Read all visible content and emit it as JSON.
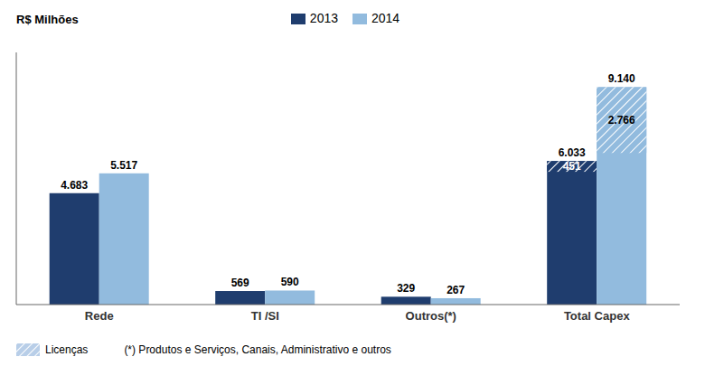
{
  "chart_data": {
    "type": "bar",
    "categories": [
      "Rede",
      "TI /SI",
      "Outros(*)",
      "Total Capex"
    ],
    "series": [
      {
        "name": "2013",
        "color": "#1F3D6E",
        "values": [
          4683,
          569,
          329,
          6033
        ],
        "value_labels": [
          "4.683",
          "569",
          "329",
          "6.033"
        ],
        "licencas": [
          null,
          null,
          null,
          451
        ],
        "licencas_labels": [
          null,
          null,
          null,
          "451"
        ]
      },
      {
        "name": "2014",
        "color": "#92BBDE",
        "values": [
          5517,
          590,
          267,
          9140
        ],
        "value_labels": [
          "5.517",
          "590",
          "267",
          "9.140"
        ],
        "licencas": [
          null,
          null,
          null,
          2766
        ],
        "licencas_labels": [
          null,
          null,
          null,
          "2.766"
        ]
      }
    ],
    "licencas_name": "Licenças",
    "licencas_color": "#B8CEE8",
    "ylabel": "R$ Milhões",
    "footnote": "(*) Produtos e Serviços, Canais, Administrativo e outros",
    "ylim": [
      0,
      10600
    ],
    "tick_labels": "x",
    "grid": false,
    "data_labels": true,
    "legend": "top"
  }
}
